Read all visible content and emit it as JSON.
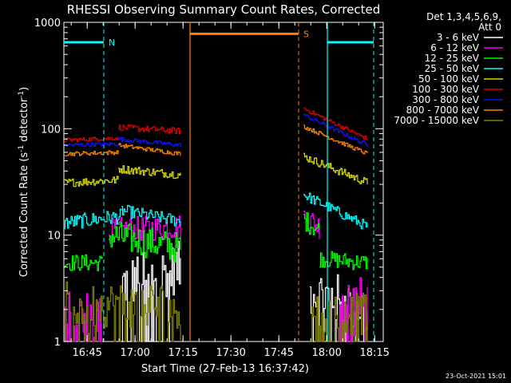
{
  "chart_data": {
    "type": "line",
    "title": "RHESSI Observing Summary Count Rates, Corrected",
    "xlabel": "Start Time (27-Feb-13 16:37:42)",
    "ylabel_main": "Corrected Count Rate (s",
    "ylabel_sup": "-1",
    "ylabel_mid": " detector",
    "ylabel_sup2": "-1",
    "ylabel_end": ")",
    "yscale": "log",
    "ylim": [
      1,
      1000
    ],
    "xlim_minutes": [
      0,
      100
    ],
    "x_ticks": [
      {
        "label": "16:45",
        "min": 7.3
      },
      {
        "label": "17:00",
        "min": 22.3
      },
      {
        "label": "17:15",
        "min": 37.3
      },
      {
        "label": "17:30",
        "min": 52.3
      },
      {
        "label": "17:45",
        "min": 67.3
      },
      {
        "label": "18:00",
        "min": 82.3
      },
      {
        "label": "18:15",
        "min": 97.3
      }
    ],
    "y_ticks": [
      {
        "label": "1",
        "value": 1
      },
      {
        "label": "10",
        "value": 10
      },
      {
        "label": "100",
        "value": 100
      },
      {
        "label": "1000",
        "value": 1000
      }
    ],
    "legend_header": [
      "Det 1,3,4,5,6,9,",
      "Att 0"
    ],
    "legend_placement": "right",
    "series": [
      {
        "name": "3 - 6 keV",
        "color": "#ffffff"
      },
      {
        "name": "6 - 12 keV",
        "color": "#ff00ff"
      },
      {
        "name": "12 - 25 keV",
        "color": "#00ff00"
      },
      {
        "name": "25 - 50 keV",
        "color": "#00ffff"
      },
      {
        "name": "50 - 100 keV",
        "color": "#d8d800"
      },
      {
        "name": "100 - 300 keV",
        "color": "#e00000"
      },
      {
        "name": "300 - 800 keV",
        "color": "#1010ff"
      },
      {
        "name": "800 - 7000 keV",
        "color": "#ff8000"
      },
      {
        "name": "7000 - 15000 keV",
        "color": "#808000"
      }
    ],
    "segments": [
      {
        "band": "3 - 6 keV",
        "x": [
          18,
          36.5
        ],
        "y": [
          3.5,
          5.0
        ],
        "noise": 0.25,
        "fill_to_bottom": true
      },
      {
        "band": "3 - 6 keV",
        "x": [
          77,
          95
        ],
        "y": [
          3.0,
          2.0
        ],
        "noise": 0.25,
        "fill_to_bottom": true
      },
      {
        "band": "6 - 12 keV",
        "x": [
          0,
          12
        ],
        "y": [
          1.6,
          1.6
        ],
        "noise": 0.3,
        "fill_to_bottom": true
      },
      {
        "band": "6 - 12 keV",
        "x": [
          86,
          95
        ],
        "y": [
          2.3,
          2.0
        ],
        "noise": 0.3,
        "fill_to_bottom": true
      },
      {
        "band": "6 - 12 keV",
        "x": [
          14,
          36.5
        ],
        "y": [
          11,
          12
        ],
        "noise": 0.12
      },
      {
        "band": "6 - 12 keV",
        "x": [
          75,
          80
        ],
        "y": [
          15,
          12
        ],
        "noise": 0.12
      },
      {
        "band": "12 - 25 keV",
        "x": [
          0,
          12
        ],
        "y": [
          5.5,
          5.5
        ],
        "noise": 0.08
      },
      {
        "band": "12 - 25 keV",
        "x": [
          14,
          36.5
        ],
        "y": [
          10,
          7.5
        ],
        "noise": 0.15
      },
      {
        "band": "12 - 25 keV",
        "x": [
          75,
          80
        ],
        "y": [
          14,
          11
        ],
        "noise": 0.1
      },
      {
        "band": "12 - 25 keV",
        "x": [
          80,
          95
        ],
        "y": [
          6,
          5.5
        ],
        "noise": 0.08
      },
      {
        "band": "25 - 50 keV",
        "x": [
          0,
          18
        ],
        "y": [
          13,
          15
        ],
        "noise": 0.07
      },
      {
        "band": "25 - 50 keV",
        "x": [
          18,
          36.5
        ],
        "y": [
          17,
          13.5
        ],
        "noise": 0.06
      },
      {
        "band": "25 - 50 keV",
        "x": [
          75,
          95
        ],
        "y": [
          24,
          12
        ],
        "noise": 0.05
      },
      {
        "band": "50 - 100 keV",
        "x": [
          0,
          17
        ],
        "y": [
          31,
          33
        ],
        "noise": 0.04
      },
      {
        "band": "50 - 100 keV",
        "x": [
          17,
          36.5
        ],
        "y": [
          42,
          37
        ],
        "noise": 0.04
      },
      {
        "band": "50 - 100 keV",
        "x": [
          75,
          95
        ],
        "y": [
          55,
          31
        ],
        "noise": 0.04
      },
      {
        "band": "100 - 300 keV",
        "x": [
          0,
          17
        ],
        "y": [
          78,
          82
        ],
        "noise": 0.02
      },
      {
        "band": "100 - 300 keV",
        "x": [
          17,
          36.5
        ],
        "y": [
          103,
          95
        ],
        "noise": 0.03
      },
      {
        "band": "100 - 300 keV",
        "x": [
          75,
          95
        ],
        "y": [
          155,
          80
        ],
        "noise": 0.02
      },
      {
        "band": "300 - 800 keV",
        "x": [
          0,
          17
        ],
        "y": [
          70,
          72
        ],
        "noise": 0.02
      },
      {
        "band": "300 - 800 keV",
        "x": [
          17,
          36.5
        ],
        "y": [
          80,
          70
        ],
        "noise": 0.02
      },
      {
        "band": "300 - 800 keV",
        "x": [
          75,
          95
        ],
        "y": [
          135,
          70
        ],
        "noise": 0.02
      },
      {
        "band": "800 - 7000 keV",
        "x": [
          0,
          17
        ],
        "y": [
          58,
          60
        ],
        "noise": 0.02
      },
      {
        "band": "800 - 7000 keV",
        "x": [
          17,
          36.5
        ],
        "y": [
          70,
          58
        ],
        "noise": 0.02
      },
      {
        "band": "800 - 7000 keV",
        "x": [
          75,
          95
        ],
        "y": [
          105,
          58
        ],
        "noise": 0.02
      },
      {
        "band": "7000 - 15000 keV",
        "x": [
          0,
          36.5
        ],
        "y": [
          2.2,
          2.2
        ],
        "noise": 0.22,
        "fill_to_bottom": true
      },
      {
        "band": "7000 - 15000 keV",
        "x": [
          77,
          95
        ],
        "y": [
          2.0,
          1.8
        ],
        "noise": 0.2,
        "fill_to_bottom": true
      }
    ],
    "flag_lines": [
      {
        "label": "N",
        "color": "#00ffff",
        "x": [
          0,
          12.5
        ],
        "y": 650,
        "dashed_end": true
      },
      {
        "label": "",
        "color": "#00ffff",
        "x": [
          82.5,
          97
        ],
        "y": 650,
        "dashed_end": true,
        "solid_start": true
      },
      {
        "label": "S",
        "color": "#ff8000",
        "x": [
          39.5,
          73.5
        ],
        "y": 780,
        "dashed_end": true,
        "solid_start": true
      }
    ],
    "footer_date": "23-Oct-2021 15:01"
  }
}
